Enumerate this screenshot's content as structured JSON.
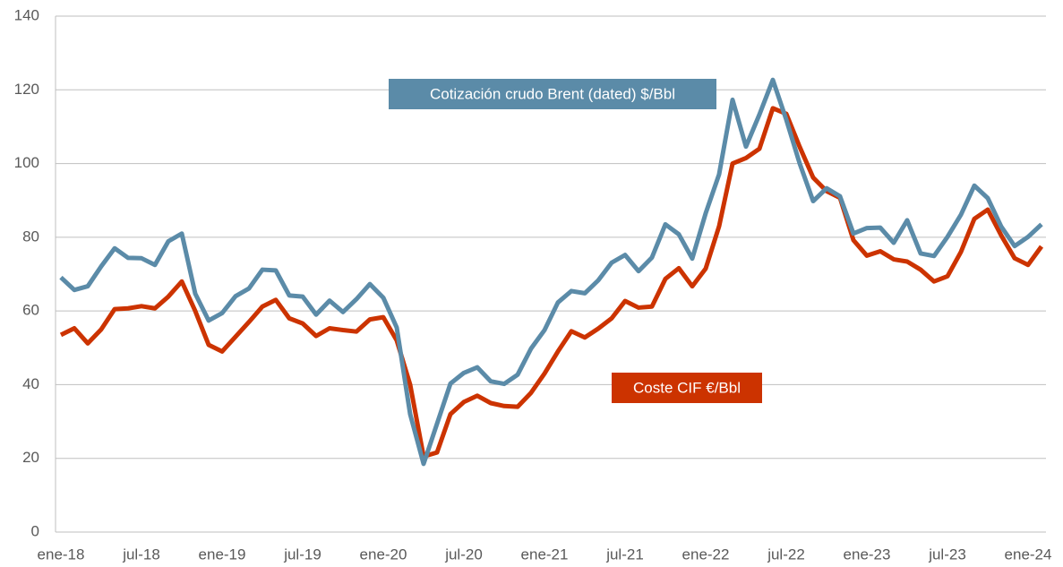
{
  "chart_data": {
    "type": "line",
    "categories": [
      "ene-18",
      null,
      null,
      null,
      null,
      null,
      "jul-18",
      null,
      null,
      null,
      null,
      null,
      "ene-19",
      null,
      null,
      null,
      null,
      null,
      "jul-19",
      null,
      null,
      null,
      null,
      null,
      "ene-20",
      null,
      null,
      null,
      null,
      null,
      "jul-20",
      null,
      null,
      null,
      null,
      null,
      "ene-21",
      null,
      null,
      null,
      null,
      null,
      "jul-21",
      null,
      null,
      null,
      null,
      null,
      "ene-22",
      null,
      null,
      null,
      null,
      null,
      "jul-22",
      null,
      null,
      null,
      null,
      null,
      "ene-23",
      null,
      null,
      null,
      null,
      null,
      "jul-23",
      null,
      null,
      null,
      null,
      null,
      "ene-24",
      null
    ],
    "series": [
      {
        "name": "Cotización crudo Brent (dated) $/Bbl",
        "color": "#5b8ba8",
        "values": [
          69.1,
          65.7,
          66.7,
          72.1,
          77.0,
          74.4,
          74.3,
          72.5,
          78.9,
          81.0,
          64.7,
          57.4,
          59.4,
          64.0,
          66.1,
          71.2,
          71.0,
          64.2,
          63.9,
          59.0,
          62.8,
          59.7,
          63.2,
          67.3,
          63.6,
          55.5,
          32.0,
          18.5,
          29.4,
          40.3,
          43.2,
          44.7,
          40.9,
          40.2,
          42.7,
          49.8,
          54.8,
          62.3,
          65.4,
          64.8,
          68.3,
          73.1,
          75.2,
          70.8,
          74.5,
          83.5,
          80.8,
          74.2,
          86.5,
          97.1,
          117.3,
          104.6,
          113.3,
          122.7,
          111.9,
          100.0,
          89.8,
          93.3,
          91.1,
          81.0,
          82.5,
          82.6,
          78.5,
          84.6,
          75.6,
          74.9,
          80.1,
          86.1,
          94.0,
          90.6,
          82.9,
          77.6,
          80.1,
          83.5
        ]
      },
      {
        "name": "Coste CIF €/Bbl",
        "color": "#cc3300",
        "values": [
          53.5,
          55.3,
          51.2,
          55.0,
          60.5,
          60.7,
          61.3,
          60.7,
          63.9,
          68.0,
          60.0,
          50.8,
          49.0,
          53.0,
          57.0,
          61.2,
          63.0,
          58.0,
          56.6,
          53.2,
          55.3,
          54.8,
          54.4,
          57.7,
          58.3,
          52.0,
          40.0,
          20.5,
          21.6,
          32.0,
          35.3,
          37.0,
          35.0,
          34.2,
          34.0,
          37.8,
          43.0,
          49.0,
          54.5,
          52.8,
          55.2,
          58.0,
          62.7,
          60.9,
          61.2,
          68.7,
          71.6,
          66.7,
          71.5,
          83.0,
          100.0,
          101.5,
          104.0,
          115.0,
          113.5,
          104.5,
          96.2,
          92.5,
          90.7,
          79.2,
          75.0,
          76.2,
          74.0,
          73.4,
          71.2,
          68.0,
          69.4,
          76.0,
          85.0,
          87.5,
          80.5,
          74.3,
          72.5,
          77.5
        ]
      }
    ],
    "ylim": [
      0,
      140
    ],
    "yticks": [
      0,
      20,
      40,
      60,
      80,
      100,
      120,
      140
    ],
    "grid": true
  }
}
